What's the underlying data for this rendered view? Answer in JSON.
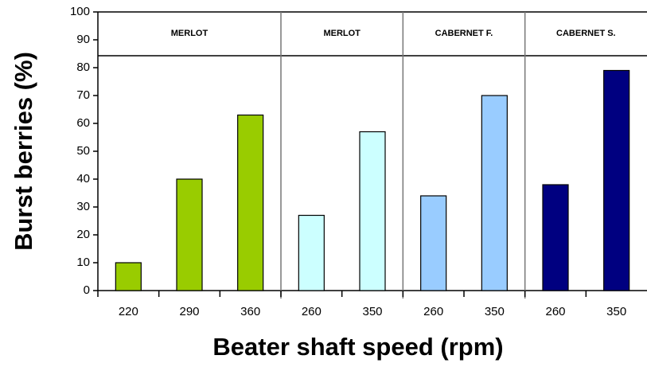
{
  "chart_data": {
    "type": "bar",
    "y_label": "Burst berries (%)",
    "x_label": "Beater shaft speed (rpm)",
    "ylim": [
      0,
      100
    ],
    "yticks": [
      0,
      10,
      20,
      30,
      40,
      50,
      60,
      70,
      80,
      90,
      100
    ],
    "groups": [
      {
        "name": "MERLOT",
        "color": "#99cc00",
        "categories": [
          "220",
          "290",
          "360"
        ],
        "values": [
          10,
          40,
          63
        ]
      },
      {
        "name": "MERLOT",
        "color": "#ccffff",
        "categories": [
          "260",
          "350"
        ],
        "values": [
          27,
          57
        ]
      },
      {
        "name": "CABERNET F.",
        "color": "#99ccff",
        "categories": [
          "260",
          "350"
        ],
        "values": [
          34,
          70
        ]
      },
      {
        "name": "CABERNET S.",
        "color": "#000080",
        "categories": [
          "260",
          "350"
        ],
        "values": [
          38,
          79
        ]
      }
    ]
  }
}
